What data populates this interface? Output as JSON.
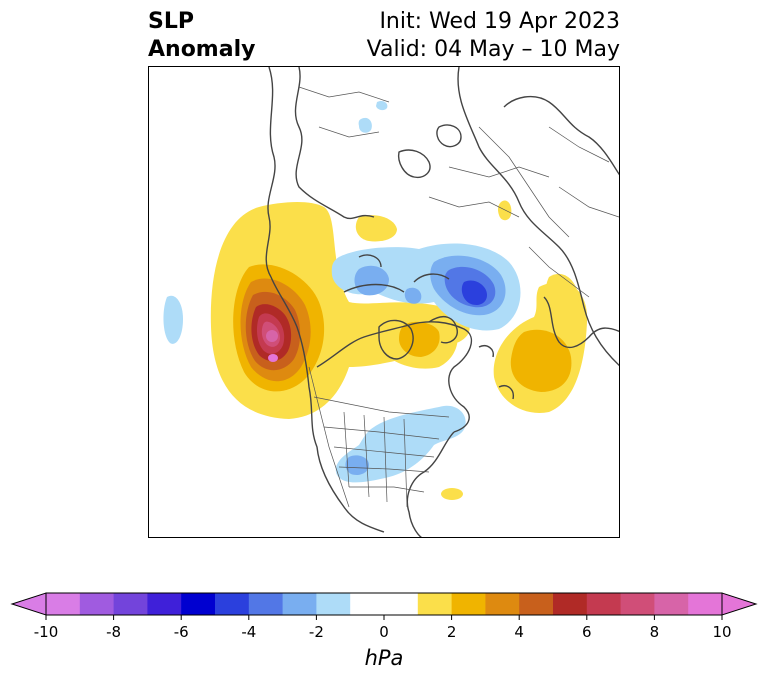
{
  "title": {
    "left_line1": "SLP",
    "left_line2": "Anomaly",
    "init": "Init: Wed 19 Apr 2023",
    "valid": "Valid: 04 May – 10 May"
  },
  "colorbar": {
    "unit": "hPa",
    "ticks": [
      "-10",
      "-8",
      "-6",
      "-4",
      "-2",
      "0",
      "2",
      "4",
      "6",
      "8",
      "10"
    ],
    "bins": [
      {
        "from": -10,
        "to": -9,
        "color": "#d97de6"
      },
      {
        "from": -9,
        "to": -8,
        "color": "#a05be0"
      },
      {
        "from": -8,
        "to": -7,
        "color": "#7344db"
      },
      {
        "from": -7,
        "to": -6,
        "color": "#3f20d9"
      },
      {
        "from": -6,
        "to": -5,
        "color": "#0000d0"
      },
      {
        "from": -5,
        "to": -4,
        "color": "#2b40dd"
      },
      {
        "from": -4,
        "to": -3,
        "color": "#5277e6"
      },
      {
        "from": -3,
        "to": -2,
        "color": "#79aef0"
      },
      {
        "from": -2,
        "to": -1,
        "color": "#aedcf8"
      },
      {
        "from": -1,
        "to": 1,
        "color": "#ffffff"
      },
      {
        "from": 1,
        "to": 2,
        "color": "#fbdf4a"
      },
      {
        "from": 2,
        "to": 3,
        "color": "#f0b400"
      },
      {
        "from": 3,
        "to": 4,
        "color": "#de8a10"
      },
      {
        "from": 4,
        "to": 5,
        "color": "#c8601c"
      },
      {
        "from": 5,
        "to": 6,
        "color": "#b02a26"
      },
      {
        "from": 6,
        "to": 7,
        "color": "#c43a50"
      },
      {
        "from": 7,
        "to": 8,
        "color": "#d04e78"
      },
      {
        "from": 8,
        "to": 9,
        "color": "#d764a8"
      },
      {
        "from": 9,
        "to": 10,
        "color": "#e475d8"
      }
    ],
    "extend_low_color": "#d97de6",
    "extend_high_color": "#e475d8"
  }
}
